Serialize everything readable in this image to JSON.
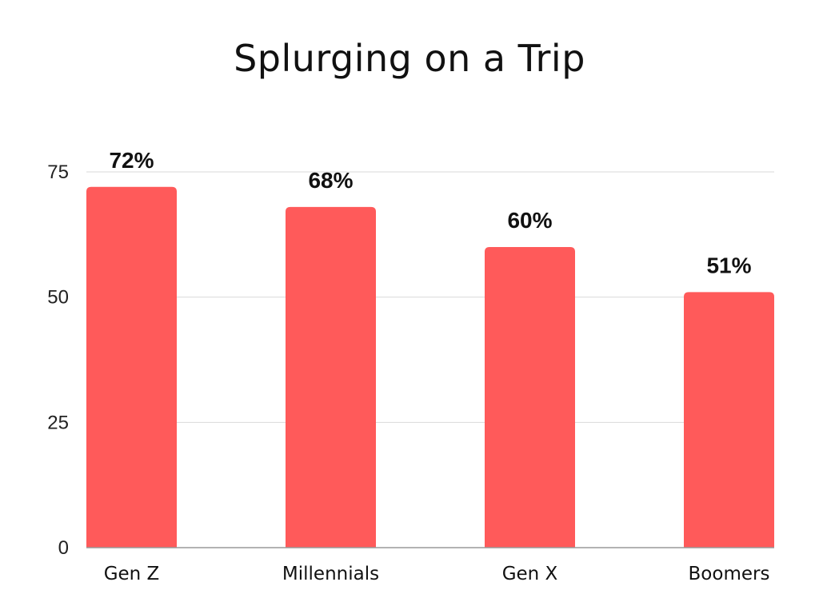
{
  "chart_data": {
    "type": "bar",
    "title": "Splurging on a Trip",
    "categories": [
      "Gen Z",
      "Millennials",
      "Gen X",
      "Boomers"
    ],
    "values": [
      72,
      68,
      60,
      51
    ],
    "data_labels": [
      "72%",
      "68%",
      "60%",
      "51%"
    ],
    "y_ticks": [
      0,
      25,
      50,
      75
    ],
    "ylim": [
      0,
      75
    ],
    "grid": true,
    "legend": "none",
    "bar_color": "#ff5a5a"
  }
}
